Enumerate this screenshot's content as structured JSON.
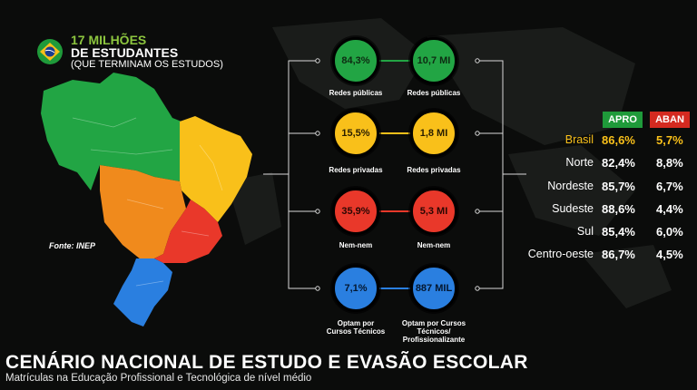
{
  "header": {
    "line1": "17 MILHÕES",
    "line2": "DE ESTUDANTES",
    "line3": "(QUE TERMINAM OS ESTUDOS)"
  },
  "source": "Fonte: INEP",
  "groups": [
    {
      "left_value": "84,3%",
      "right_value": "10,7 MI",
      "left_label": "Redes públicas",
      "right_label": "Redes públicas",
      "color": "#22a544"
    },
    {
      "left_value": "15,5%",
      "right_value": "1,8 MI",
      "left_label": "Redes privadas",
      "right_label": "Redes privadas",
      "color": "#f9c01a"
    },
    {
      "left_value": "35,9%",
      "right_value": "5,3 MI",
      "left_label": "Nem-nem",
      "right_label": "Nem-nem",
      "color": "#e9382a"
    },
    {
      "left_value": "7,1%",
      "right_value": "887 MIL",
      "left_label": "Optam por Cursos Técnicos",
      "right_label": "Optam por Cursos Técnicos/ Profissionalizante",
      "color": "#2a7fe0"
    }
  ],
  "table": {
    "headers": {
      "apro": "APRO",
      "aban": "ABAN"
    },
    "rows": [
      {
        "region": "Brasil",
        "apro": "86,6%",
        "aban": "5,7%"
      },
      {
        "region": "Norte",
        "apro": "82,4%",
        "aban": "8,8%"
      },
      {
        "region": "Nordeste",
        "apro": "85,7%",
        "aban": "6,7%"
      },
      {
        "region": "Sudeste",
        "apro": "88,6%",
        "aban": "4,4%"
      },
      {
        "region": "Sul",
        "apro": "85,4%",
        "aban": "6,0%"
      },
      {
        "region": "Centro-oeste",
        "apro": "86,7%",
        "aban": "4,5%"
      }
    ]
  },
  "map_colors": {
    "norte": "#22a544",
    "nordeste": "#f9c01a",
    "centro_oeste": "#f08a1c",
    "sudeste": "#e9382a",
    "sul": "#2a7fe0"
  },
  "footer": {
    "title": "CENÁRIO NACIONAL DE ESTUDO E EVASÃO ESCOLAR",
    "subtitle": "Matrículas na Educação Profissional e Tecnológica de nível médio"
  }
}
